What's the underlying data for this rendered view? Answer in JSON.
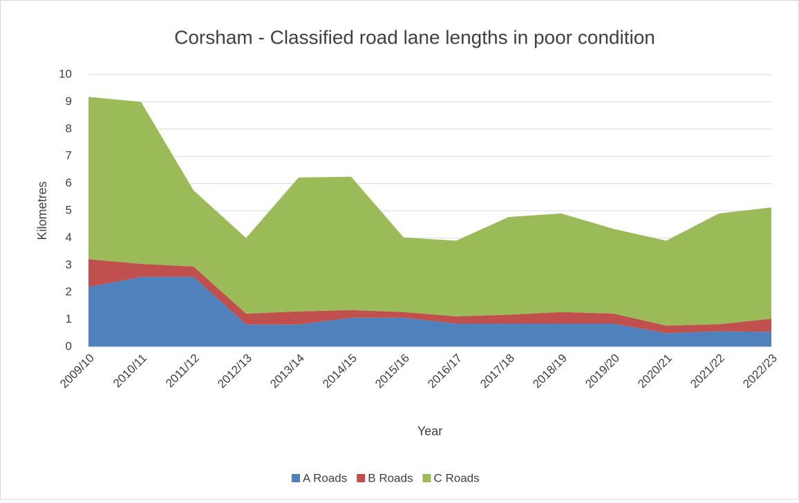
{
  "chart_data": {
    "type": "stacked_area",
    "title": "Corsham - Classified road lane lengths in poor condition",
    "x_label": "Year",
    "y_label": "Kilometres",
    "categories": [
      "2009/10",
      "2010/11",
      "2011/12",
      "2012/13",
      "2013/14",
      "2014/15",
      "2015/16",
      "2016/17",
      "2017/18",
      "2018/19",
      "2019/20",
      "2020/21",
      "2021/22",
      "2022/23"
    ],
    "series": [
      {
        "name": "A Roads",
        "color": "#4f81bd",
        "values": [
          2.2,
          2.57,
          2.57,
          0.82,
          0.82,
          1.07,
          1.07,
          0.85,
          0.85,
          0.85,
          0.85,
          0.5,
          0.57,
          0.55
        ]
      },
      {
        "name": "B Roads",
        "color": "#c0504d",
        "values": [
          1.02,
          0.48,
          0.38,
          0.4,
          0.48,
          0.28,
          0.21,
          0.27,
          0.33,
          0.43,
          0.37,
          0.28,
          0.26,
          0.48
        ]
      },
      {
        "name": "C Roads",
        "color": "#9bbb59",
        "values": [
          5.96,
          5.95,
          2.8,
          2.78,
          4.92,
          4.9,
          2.74,
          2.78,
          3.59,
          3.62,
          3.11,
          3.12,
          4.07,
          4.09
        ]
      }
    ],
    "ylim": [
      0,
      10
    ],
    "yticks": [
      0,
      1,
      2,
      3,
      4,
      5,
      6,
      7,
      8,
      9,
      10
    ],
    "grid": true,
    "legend": "bottom"
  }
}
